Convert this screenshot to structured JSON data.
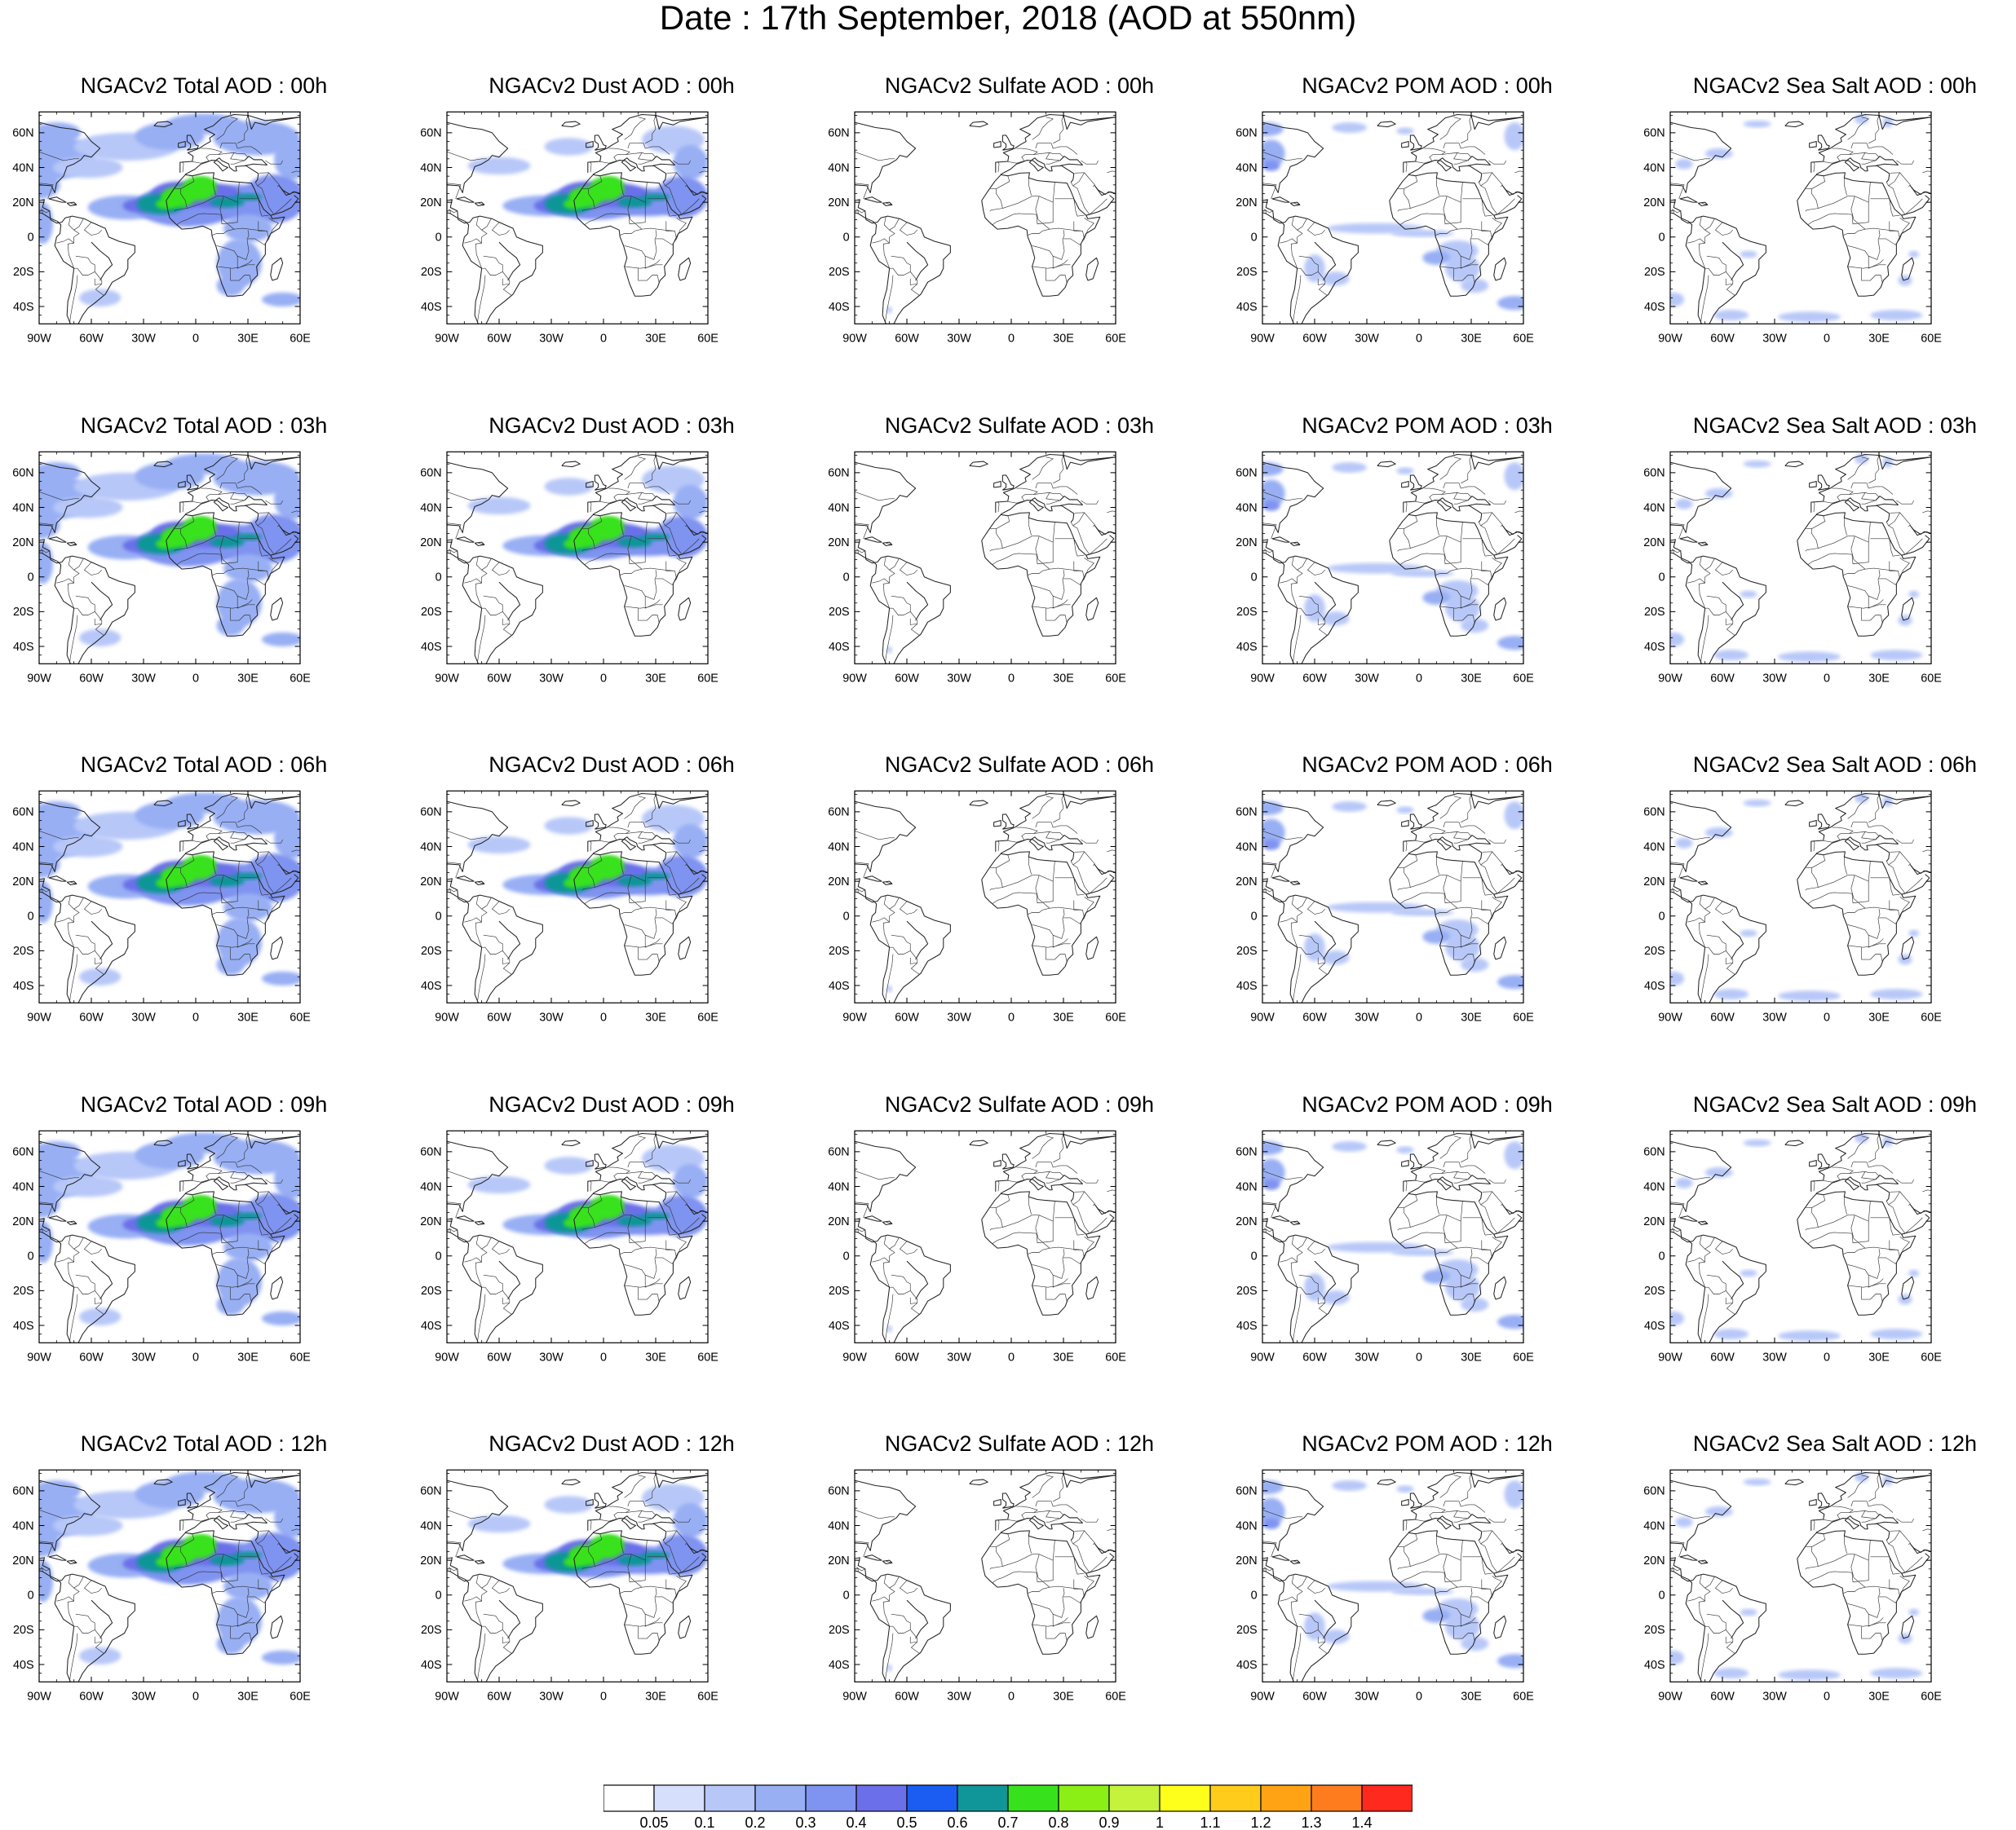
{
  "title": "Date : 17th September, 2018 (AOD at 550nm)",
  "axes": {
    "lon_ticks": [
      "90W",
      "60W",
      "30W",
      "0",
      "30E",
      "60E"
    ],
    "lat_ticks": [
      "60N",
      "40N",
      "20N",
      "0",
      "20S",
      "40S"
    ]
  },
  "map_extent": {
    "lon": [
      -90,
      60
    ],
    "lat": [
      -50,
      72
    ]
  },
  "panels": [
    {
      "title": "NGACv2 Total AOD : 00h",
      "species": "total",
      "hour": "00h"
    },
    {
      "title": "NGACv2 Dust AOD : 00h",
      "species": "dust",
      "hour": "00h"
    },
    {
      "title": "NGACv2 Sulfate AOD : 00h",
      "species": "sulfate",
      "hour": "00h"
    },
    {
      "title": "NGACv2 POM AOD : 00h",
      "species": "pom",
      "hour": "00h"
    },
    {
      "title": "NGACv2 Sea Salt AOD : 00h",
      "species": "seasalt",
      "hour": "00h"
    },
    {
      "title": "NGACv2 Total AOD : 03h",
      "species": "total",
      "hour": "03h"
    },
    {
      "title": "NGACv2 Dust AOD : 03h",
      "species": "dust",
      "hour": "03h"
    },
    {
      "title": "NGACv2 Sulfate AOD : 03h",
      "species": "sulfate",
      "hour": "03h"
    },
    {
      "title": "NGACv2 POM AOD : 03h",
      "species": "pom",
      "hour": "03h"
    },
    {
      "title": "NGACv2 Sea Salt AOD : 03h",
      "species": "seasalt",
      "hour": "03h"
    },
    {
      "title": "NGACv2 Total AOD : 06h",
      "species": "total",
      "hour": "06h"
    },
    {
      "title": "NGACv2 Dust AOD : 06h",
      "species": "dust",
      "hour": "06h"
    },
    {
      "title": "NGACv2 Sulfate AOD : 06h",
      "species": "sulfate",
      "hour": "06h"
    },
    {
      "title": "NGACv2 POM AOD : 06h",
      "species": "pom",
      "hour": "06h"
    },
    {
      "title": "NGACv2 Sea Salt AOD : 06h",
      "species": "seasalt",
      "hour": "06h"
    },
    {
      "title": "NGACv2 Total AOD : 09h",
      "species": "total",
      "hour": "09h"
    },
    {
      "title": "NGACv2 Dust AOD : 09h",
      "species": "dust",
      "hour": "09h"
    },
    {
      "title": "NGACv2 Sulfate AOD : 09h",
      "species": "sulfate",
      "hour": "09h"
    },
    {
      "title": "NGACv2 POM AOD : 09h",
      "species": "pom",
      "hour": "09h"
    },
    {
      "title": "NGACv2 Sea Salt  AOD : 09h",
      "species": "seasalt",
      "hour": "09h"
    },
    {
      "title": "NGACv2 Total AOD  : 12h",
      "species": "total",
      "hour": "12h"
    },
    {
      "title": "NGACv2 Dust AOD : 12h",
      "species": "dust",
      "hour": "12h"
    },
    {
      "title": "NGACv2 Sulfate AOD : 12h",
      "species": "sulfate",
      "hour": "12h"
    },
    {
      "title": "NGACv2 POM  AOD : 12h",
      "species": "pom",
      "hour": "12h"
    },
    {
      "title": "NGACv2 Sea Salt  AOD : 12h",
      "species": "seasalt",
      "hour": "12h"
    }
  ],
  "colorbar": {
    "labels": [
      "0.05",
      "0.1",
      "0.2",
      "0.3",
      "0.4",
      "0.5",
      "0.6",
      "0.7",
      "0.8",
      "0.9",
      "1",
      "1.1",
      "1.2",
      "1.3",
      "1.4"
    ],
    "colors": [
      "#ffffff",
      "#d6e0fc",
      "#b7c7f8",
      "#98aff4",
      "#7f93f0",
      "#6b6fe9",
      "#1b5df2",
      "#109698",
      "#37e21c",
      "#8bee14",
      "#c5f23b",
      "#ffff1c",
      "#ffcc1b",
      "#ffa314",
      "#ff7c1e",
      "#ff2a1d"
    ]
  }
}
